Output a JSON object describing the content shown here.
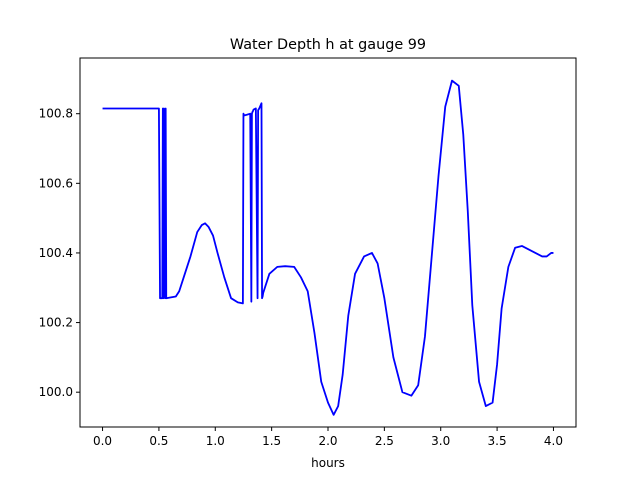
{
  "chart_data": {
    "type": "line",
    "title": "Water Depth h at gauge 99",
    "xlabel": "hours",
    "ylabel": "",
    "xlim": [
      -0.2,
      4.2
    ],
    "ylim": [
      99.9,
      100.96
    ],
    "xticks": [
      0.0,
      0.5,
      1.0,
      1.5,
      2.0,
      2.5,
      3.0,
      3.5,
      4.0
    ],
    "xtick_labels": [
      "0.0",
      "0.5",
      "1.0",
      "1.5",
      "2.0",
      "2.5",
      "3.0",
      "3.5",
      "4.0"
    ],
    "yticks": [
      100.0,
      100.2,
      100.4,
      100.6,
      100.8
    ],
    "ytick_labels": [
      "100.0",
      "100.2",
      "100.4",
      "100.6",
      "100.8"
    ],
    "grid": false,
    "line_color": "#0000ff",
    "series": [
      {
        "x": [
          0.0,
          0.49,
          0.5,
          0.51,
          0.53,
          0.535,
          0.54,
          0.545,
          0.555,
          0.56,
          0.565,
          0.6,
          0.65,
          0.68,
          0.72,
          0.78,
          0.84,
          0.88,
          0.91,
          0.94,
          0.98,
          1.02,
          1.08,
          1.14,
          1.2,
          1.245,
          1.25,
          1.255,
          1.28,
          1.31,
          1.32,
          1.325,
          1.33,
          1.335,
          1.34,
          1.36,
          1.375,
          1.38,
          1.39,
          1.41,
          1.415,
          1.42,
          1.425,
          1.44,
          1.48,
          1.55,
          1.62,
          1.7,
          1.76,
          1.82,
          1.88,
          1.94,
          2.0,
          2.05,
          2.09,
          2.13,
          2.18,
          2.24,
          2.32,
          2.39,
          2.44,
          2.5,
          2.58,
          2.66,
          2.74,
          2.8,
          2.86,
          2.92,
          2.98,
          3.04,
          3.1,
          3.16,
          3.2,
          3.24,
          3.28,
          3.34,
          3.4,
          3.46,
          3.5,
          3.54,
          3.6,
          3.66,
          3.72,
          3.78,
          3.84,
          3.9,
          3.94,
          3.98,
          4.0
        ],
        "y": [
          100.815,
          100.815,
          100.815,
          100.27,
          100.27,
          100.815,
          100.27,
          100.815,
          100.27,
          100.815,
          100.27,
          100.272,
          100.275,
          100.29,
          100.33,
          100.39,
          100.46,
          100.48,
          100.485,
          100.475,
          100.45,
          100.4,
          100.33,
          100.27,
          100.258,
          100.255,
          100.8,
          100.795,
          100.797,
          100.8,
          100.26,
          100.8,
          100.805,
          100.808,
          100.812,
          100.815,
          100.27,
          100.81,
          100.815,
          100.83,
          100.27,
          100.275,
          100.285,
          100.3,
          100.34,
          100.36,
          100.362,
          100.36,
          100.33,
          100.29,
          100.17,
          100.03,
          99.97,
          99.935,
          99.96,
          100.05,
          100.22,
          100.34,
          100.39,
          100.4,
          100.37,
          100.27,
          100.1,
          100.0,
          99.99,
          100.02,
          100.16,
          100.39,
          100.62,
          100.82,
          100.895,
          100.88,
          100.74,
          100.52,
          100.25,
          100.03,
          99.96,
          99.97,
          100.08,
          100.24,
          100.36,
          100.415,
          100.42,
          100.41,
          100.4,
          100.39,
          100.39,
          100.4,
          100.4
        ]
      }
    ]
  }
}
